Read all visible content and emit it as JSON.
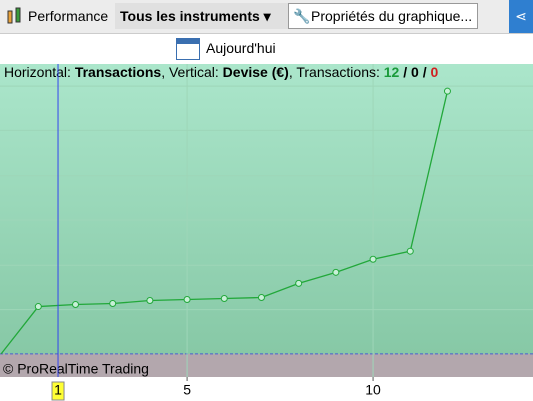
{
  "toolbar": {
    "performance": "Performance",
    "instruments": "Tous les instruments",
    "properties": "Propriétés du graphique...",
    "today": "Aujourd'hui"
  },
  "info": {
    "h_label": "Horizontal:",
    "h_value": "Transactions",
    "v_label": ", Vertical:",
    "v_value": "Devise (€)",
    "t_label": ", Transactions:",
    "wins": "12",
    "sep1": "/",
    "even": "0",
    "sep2": "/",
    "losses": "0"
  },
  "copyright": "© ProRealTime Trading",
  "chart_data": {
    "type": "line",
    "x": [
      0,
      1,
      2,
      3,
      4,
      5,
      6,
      7,
      8,
      9,
      10,
      11,
      12
    ],
    "series": [
      {
        "name": "Performance",
        "color": "#22a83a",
        "values": [
          0,
          47,
          49,
          50,
          53,
          54,
          55,
          56,
          70,
          81,
          94,
          102,
          261
        ]
      }
    ],
    "xlim": [
      -0.03,
      14.3
    ],
    "ylim": [
      -23,
      288
    ],
    "xticks": [
      5,
      10
    ],
    "ygrid": [
      0,
      44,
      88,
      133,
      177,
      222,
      266
    ],
    "grid": true,
    "cursor": {
      "value": 1.53,
      "label": "1"
    }
  }
}
